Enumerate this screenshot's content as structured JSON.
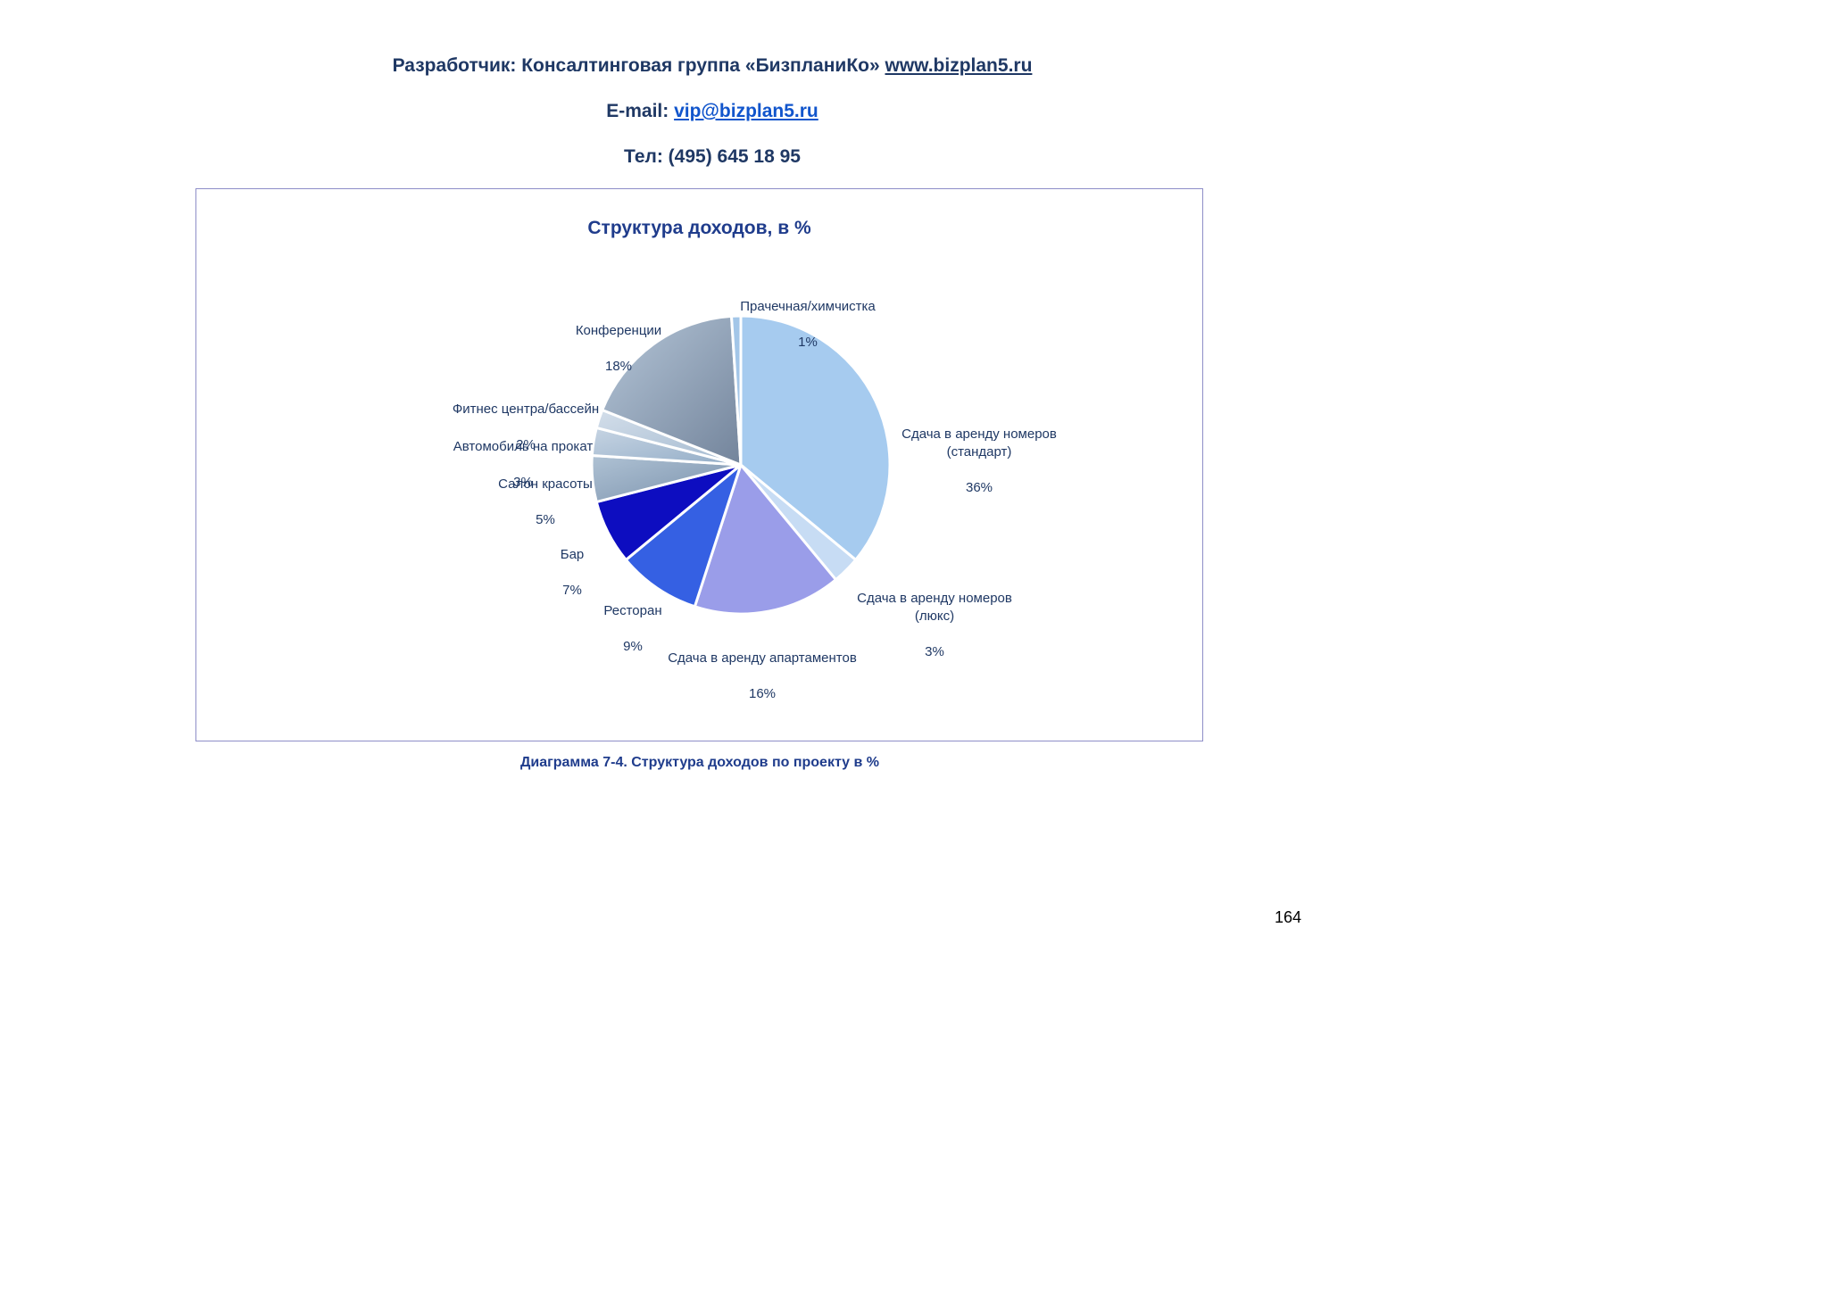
{
  "header": {
    "developer_prefix": "Разработчик: Консалтинговая группа «БизпланиКо»",
    "developer_link": "www.bizplan5.ru",
    "email_label": "E-mail:",
    "email_link": "vip@bizplan5.ru",
    "phone": "Тел: (495) 645 18 95"
  },
  "chart_data": {
    "type": "pie",
    "title": "Структура доходов, в %",
    "unit": "%",
    "legend": "none",
    "start_angle_deg": 0,
    "direction": "clockwise",
    "slices": [
      {
        "label": "Сдача в аренду номеров (стандарт)",
        "label_display": "Сдача в аренду номеров\n(стандарт)",
        "value": 36,
        "pct_label": "36%",
        "color": "#A6CBEF"
      },
      {
        "label": "Сдача в аренду номеров (люкс)",
        "label_display": "Сдача в аренду номеров\n(люкс)",
        "value": 3,
        "pct_label": "3%",
        "color": "#C7DCF4"
      },
      {
        "label": "Сдача в аренду апартаментов",
        "label_display": "Сдача в аренду апартаментов",
        "value": 16,
        "pct_label": "16%",
        "color": "#9A9DE9"
      },
      {
        "label": "Ресторан",
        "label_display": "Ресторан",
        "value": 9,
        "pct_label": "9%",
        "color": "#3560E3"
      },
      {
        "label": "Бар",
        "label_display": "Бар",
        "value": 7,
        "pct_label": "7%",
        "color": "#0D0DC0"
      },
      {
        "label": "Салон красоты",
        "label_display": "Салон красоты",
        "value": 5,
        "pct_label": "5%",
        "color": "#7990AB",
        "color_light": "#AFC2D4"
      },
      {
        "label": "Автомобиль на прокат",
        "label_display": "Автомобиль на прокат",
        "value": 3,
        "pct_label": "3%",
        "color": "#92ACC6",
        "color_light": "#C6D4E3"
      },
      {
        "label": "Фитнес центра/бассейн",
        "label_display": "Фитнес центра/бассейн",
        "value": 2,
        "pct_label": "2%",
        "color": "#A3B9CF",
        "color_light": "#D3DEEA"
      },
      {
        "label": "Конференции",
        "label_display": "Конференции",
        "value": 18,
        "pct_label": "18%",
        "color": "#73849B",
        "color_light": "#B5C6D8"
      },
      {
        "label": "Прачечная/химчистка",
        "label_display": "Прачечная/химчистка",
        "value": 1,
        "pct_label": "1%",
        "color": "#A3C6E8"
      }
    ]
  },
  "caption": "Диаграмма 7-4. Структура доходов по проекту в %",
  "page_number": "164",
  "colors": {
    "text_navy": "#1F3864",
    "title_navy": "#1F3C8C",
    "link_blue": "#1155CC",
    "frame_border": "#8E8EC8",
    "page_text": "#000000"
  }
}
